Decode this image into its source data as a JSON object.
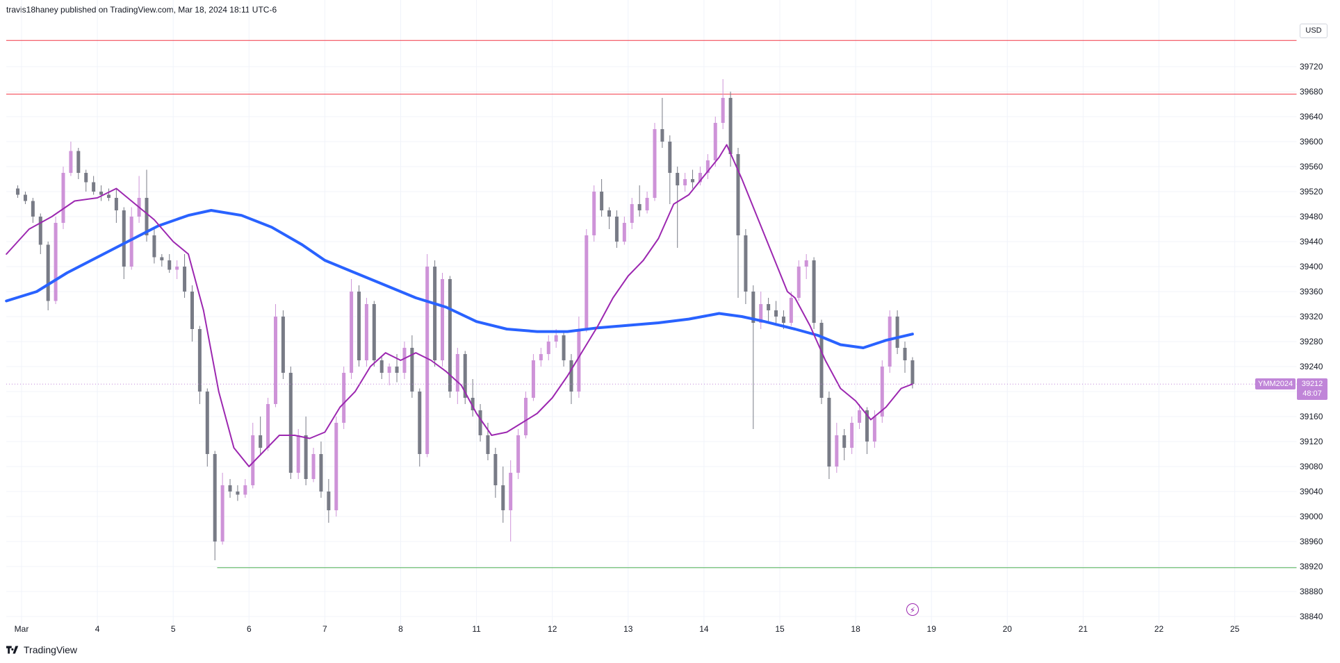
{
  "header": {
    "publish_text": "travis18haney published on TradingView.com, Mar 18, 2024 18:11 UTC-6"
  },
  "footer": {
    "brand": "TradingView",
    "logo_icon": "tradingview-logo-icon"
  },
  "axis": {
    "currency": "USD",
    "symbol": "YMM2024",
    "last_price": "39212",
    "countdown": "48:07"
  },
  "colors": {
    "bull": "#ce93d8",
    "bear": "#787b86",
    "ma_fast": "#9c27b0",
    "ma_slow": "#2962ff",
    "resistance": "#f23645",
    "support": "#4caf50",
    "tag": "#c085d8"
  },
  "icons": {
    "replay": "lightning-bolt-icon"
  },
  "chart_data": {
    "type": "candlestick",
    "title": "",
    "xlabel": "",
    "ylabel": "",
    "ylim": [
      38820,
      39760
    ],
    "y_ticks": [
      38840,
      38880,
      38920,
      38960,
      39000,
      39040,
      39080,
      39120,
      39160,
      39200,
      39240,
      39280,
      39320,
      39360,
      39400,
      39440,
      39480,
      39520,
      39560,
      39600,
      39640,
      39680,
      39720
    ],
    "x_ticks": [
      {
        "label": "Mar",
        "day": 0
      },
      {
        "label": "4",
        "day": 1
      },
      {
        "label": "5",
        "day": 2
      },
      {
        "label": "6",
        "day": 3
      },
      {
        "label": "7",
        "day": 4
      },
      {
        "label": "8",
        "day": 5
      },
      {
        "label": "11",
        "day": 6
      },
      {
        "label": "12",
        "day": 7
      },
      {
        "label": "13",
        "day": 8
      },
      {
        "label": "14",
        "day": 9
      },
      {
        "label": "15",
        "day": 10
      },
      {
        "label": "18",
        "day": 11
      },
      {
        "label": "19",
        "day": 12
      },
      {
        "label": "20",
        "day": 13
      },
      {
        "label": "21",
        "day": 14
      },
      {
        "label": "22",
        "day": 15
      },
      {
        "label": "25",
        "day": 16
      }
    ],
    "horizontal_lines": [
      {
        "value": 39762,
        "color": "#f23645"
      },
      {
        "value": 39676,
        "color": "#f23645"
      },
      {
        "value": 38918,
        "color": "#4caf50",
        "start_day": 2.58
      }
    ],
    "last_price": 39212,
    "ma_fast": [
      [
        -0.2,
        39420
      ],
      [
        0.1,
        39460
      ],
      [
        0.4,
        39480
      ],
      [
        0.7,
        39505
      ],
      [
        1.0,
        39510
      ],
      [
        1.25,
        39525
      ],
      [
        1.5,
        39500
      ],
      [
        1.75,
        39475
      ],
      [
        2.0,
        39440
      ],
      [
        2.2,
        39420
      ],
      [
        2.4,
        39330
      ],
      [
        2.6,
        39200
      ],
      [
        2.8,
        39110
      ],
      [
        3.0,
        39080
      ],
      [
        3.2,
        39105
      ],
      [
        3.4,
        39130
      ],
      [
        3.6,
        39130
      ],
      [
        3.8,
        39125
      ],
      [
        4.0,
        39135
      ],
      [
        4.2,
        39175
      ],
      [
        4.4,
        39200
      ],
      [
        4.6,
        39240
      ],
      [
        4.8,
        39262
      ],
      [
        5.0,
        39250
      ],
      [
        5.2,
        39262
      ],
      [
        5.4,
        39250
      ],
      [
        5.6,
        39232
      ],
      [
        5.8,
        39210
      ],
      [
        6.0,
        39165
      ],
      [
        6.2,
        39130
      ],
      [
        6.4,
        39135
      ],
      [
        6.6,
        39150
      ],
      [
        6.8,
        39165
      ],
      [
        7.0,
        39190
      ],
      [
        7.2,
        39225
      ],
      [
        7.4,
        39265
      ],
      [
        7.6,
        39305
      ],
      [
        7.8,
        39350
      ],
      [
        8.0,
        39385
      ],
      [
        8.2,
        39410
      ],
      [
        8.4,
        39445
      ],
      [
        8.6,
        39500
      ],
      [
        8.8,
        39515
      ],
      [
        9.0,
        39545
      ],
      [
        9.2,
        39575
      ],
      [
        9.3,
        39595
      ],
      [
        9.5,
        39540
      ],
      [
        9.7,
        39480
      ],
      [
        9.9,
        39420
      ],
      [
        10.1,
        39360
      ],
      [
        10.2,
        39350
      ],
      [
        10.4,
        39305
      ],
      [
        10.6,
        39250
      ],
      [
        10.8,
        39205
      ],
      [
        11.0,
        39185
      ],
      [
        11.2,
        39155
      ],
      [
        11.4,
        39175
      ],
      [
        11.6,
        39205
      ],
      [
        11.75,
        39212
      ]
    ],
    "ma_slow": [
      [
        -0.2,
        39345
      ],
      [
        0.2,
        39360
      ],
      [
        0.6,
        39390
      ],
      [
        1.0,
        39415
      ],
      [
        1.4,
        39440
      ],
      [
        1.8,
        39465
      ],
      [
        2.2,
        39482
      ],
      [
        2.5,
        39490
      ],
      [
        2.9,
        39482
      ],
      [
        3.3,
        39463
      ],
      [
        3.7,
        39435
      ],
      [
        4.0,
        39410
      ],
      [
        4.4,
        39390
      ],
      [
        4.8,
        39370
      ],
      [
        5.2,
        39350
      ],
      [
        5.6,
        39335
      ],
      [
        6.0,
        39312
      ],
      [
        6.4,
        39300
      ],
      [
        6.8,
        39296
      ],
      [
        7.2,
        39296
      ],
      [
        7.6,
        39302
      ],
      [
        8.0,
        39306
      ],
      [
        8.4,
        39310
      ],
      [
        8.8,
        39316
      ],
      [
        9.2,
        39325
      ],
      [
        9.5,
        39320
      ],
      [
        9.8,
        39312
      ],
      [
        10.2,
        39300
      ],
      [
        10.5,
        39290
      ],
      [
        10.8,
        39275
      ],
      [
        11.1,
        39270
      ],
      [
        11.4,
        39282
      ],
      [
        11.75,
        39292
      ]
    ],
    "candles": [
      [
        -0.05,
        39525,
        39530,
        39510,
        39515
      ],
      [
        0.05,
        39515,
        39520,
        39500,
        39505
      ],
      [
        0.15,
        39505,
        39510,
        39470,
        39480
      ],
      [
        0.25,
        39480,
        39485,
        39420,
        39435
      ],
      [
        0.35,
        39435,
        39440,
        39330,
        39345
      ],
      [
        0.45,
        39345,
        39480,
        39340,
        39470
      ],
      [
        0.55,
        39470,
        39560,
        39460,
        39550
      ],
      [
        0.65,
        39550,
        39600,
        39545,
        39585
      ],
      [
        0.75,
        39585,
        39590,
        39540,
        39550
      ],
      [
        0.85,
        39550,
        39555,
        39520,
        39535
      ],
      [
        0.95,
        39535,
        39545,
        39515,
        39520
      ],
      [
        1.05,
        39520,
        39530,
        39505,
        39515
      ],
      [
        1.15,
        39515,
        39525,
        39505,
        39510
      ],
      [
        1.25,
        39510,
        39525,
        39470,
        39490
      ],
      [
        1.35,
        39490,
        39495,
        39380,
        39400
      ],
      [
        1.45,
        39400,
        39495,
        39395,
        39480
      ],
      [
        1.55,
        39480,
        39545,
        39470,
        39510
      ],
      [
        1.65,
        39510,
        39555,
        39440,
        39450
      ],
      [
        1.75,
        39450,
        39460,
        39405,
        39415
      ],
      [
        1.85,
        39415,
        39420,
        39400,
        39410
      ],
      [
        1.95,
        39410,
        39420,
        39390,
        39395
      ],
      [
        2.05,
        39395,
        39410,
        39380,
        39400
      ],
      [
        2.15,
        39400,
        39420,
        39350,
        39360
      ],
      [
        2.25,
        39360,
        39370,
        39280,
        39300
      ],
      [
        2.35,
        39300,
        39305,
        39180,
        39200
      ],
      [
        2.45,
        39200,
        39205,
        39080,
        39100
      ],
      [
        2.55,
        39100,
        39105,
        38930,
        38960
      ],
      [
        2.65,
        38960,
        39070,
        38955,
        39050
      ],
      [
        2.75,
        39050,
        39060,
        39030,
        39040
      ],
      [
        2.85,
        39040,
        39050,
        39025,
        39035
      ],
      [
        2.95,
        39035,
        39060,
        39030,
        39050
      ],
      [
        3.05,
        39050,
        39150,
        39045,
        39130
      ],
      [
        3.15,
        39130,
        39160,
        39100,
        39110
      ],
      [
        3.25,
        39110,
        39190,
        39105,
        39180
      ],
      [
        3.35,
        39180,
        39340,
        39175,
        39320
      ],
      [
        3.45,
        39320,
        39330,
        39220,
        39230
      ],
      [
        3.55,
        39230,
        39240,
        39060,
        39070
      ],
      [
        3.65,
        39070,
        39140,
        39060,
        39130
      ],
      [
        3.75,
        39130,
        39160,
        39050,
        39060
      ],
      [
        3.85,
        39060,
        39110,
        39055,
        39100
      ],
      [
        3.95,
        39100,
        39120,
        39030,
        39040
      ],
      [
        4.05,
        39040,
        39060,
        38990,
        39010
      ],
      [
        4.15,
        39010,
        39160,
        39000,
        39150
      ],
      [
        4.25,
        39150,
        39240,
        39140,
        39230
      ],
      [
        4.35,
        39230,
        39380,
        39220,
        39360
      ],
      [
        4.45,
        39360,
        39370,
        39240,
        39250
      ],
      [
        4.55,
        39250,
        39350,
        39240,
        39340
      ],
      [
        4.65,
        39340,
        39345,
        39240,
        39250
      ],
      [
        4.75,
        39250,
        39255,
        39220,
        39230
      ],
      [
        4.85,
        39230,
        39245,
        39210,
        39240
      ],
      [
        4.95,
        39240,
        39260,
        39215,
        39230
      ],
      [
        5.05,
        39230,
        39280,
        39220,
        39270
      ],
      [
        5.15,
        39270,
        39290,
        39190,
        39200
      ],
      [
        5.25,
        39200,
        39205,
        39080,
        39100
      ],
      [
        5.35,
        39100,
        39420,
        39095,
        39400
      ],
      [
        5.45,
        39400,
        39410,
        39240,
        39250
      ],
      [
        5.55,
        39250,
        39390,
        39240,
        39380
      ],
      [
        5.65,
        39380,
        39385,
        39190,
        39200
      ],
      [
        5.75,
        39200,
        39270,
        39180,
        39260
      ],
      [
        5.85,
        39260,
        39265,
        39180,
        39190
      ],
      [
        5.95,
        39190,
        39220,
        39160,
        39170
      ],
      [
        6.05,
        39170,
        39180,
        39120,
        39130
      ],
      [
        6.15,
        39130,
        39150,
        39090,
        39100
      ],
      [
        6.25,
        39100,
        39110,
        39030,
        39050
      ],
      [
        6.35,
        39050,
        39080,
        38990,
        39010
      ],
      [
        6.45,
        39010,
        39090,
        38960,
        39070
      ],
      [
        6.55,
        39070,
        39140,
        39060,
        39130
      ],
      [
        6.65,
        39130,
        39200,
        39125,
        39190
      ],
      [
        6.75,
        39190,
        39260,
        39185,
        39250
      ],
      [
        6.85,
        39250,
        39270,
        39240,
        39260
      ],
      [
        6.95,
        39260,
        39290,
        39250,
        39280
      ],
      [
        7.05,
        39280,
        39300,
        39270,
        39290
      ],
      [
        7.15,
        39290,
        39295,
        39240,
        39250
      ],
      [
        7.25,
        39250,
        39260,
        39180,
        39200
      ],
      [
        7.35,
        39200,
        39320,
        39190,
        39300
      ],
      [
        7.45,
        39300,
        39460,
        39295,
        39450
      ],
      [
        7.55,
        39450,
        39530,
        39440,
        39520
      ],
      [
        7.65,
        39520,
        39540,
        39480,
        39490
      ],
      [
        7.75,
        39490,
        39495,
        39460,
        39480
      ],
      [
        7.85,
        39480,
        39490,
        39430,
        39440
      ],
      [
        7.95,
        39440,
        39480,
        39435,
        39470
      ],
      [
        8.05,
        39470,
        39510,
        39460,
        39500
      ],
      [
        8.15,
        39500,
        39530,
        39480,
        39490
      ],
      [
        8.25,
        39490,
        39520,
        39485,
        39510
      ],
      [
        8.35,
        39510,
        39630,
        39505,
        39620
      ],
      [
        8.45,
        39620,
        39670,
        39590,
        39600
      ],
      [
        8.55,
        39600,
        39610,
        39500,
        39550
      ],
      [
        8.65,
        39550,
        39560,
        39430,
        39530
      ],
      [
        8.75,
        39530,
        39550,
        39520,
        39540
      ],
      [
        8.85,
        39540,
        39555,
        39525,
        39535
      ],
      [
        8.95,
        39535,
        39560,
        39530,
        39550
      ],
      [
        9.05,
        39550,
        39580,
        39540,
        39570
      ],
      [
        9.15,
        39570,
        39640,
        39560,
        39630
      ],
      [
        9.25,
        39630,
        39700,
        39620,
        39670
      ],
      [
        9.35,
        39670,
        39680,
        39560,
        39580
      ],
      [
        9.45,
        39580,
        39590,
        39350,
        39450
      ],
      [
        9.55,
        39450,
        39460,
        39340,
        39360
      ],
      [
        9.65,
        39360,
        39370,
        39140,
        39310
      ],
      [
        9.75,
        39310,
        39360,
        39300,
        39340
      ],
      [
        9.85,
        39340,
        39350,
        39310,
        39330
      ],
      [
        9.95,
        39330,
        39345,
        39305,
        39320
      ],
      [
        10.05,
        39320,
        39330,
        39300,
        39310
      ],
      [
        10.15,
        39310,
        39360,
        39305,
        39350
      ],
      [
        10.25,
        39350,
        39410,
        39345,
        39400
      ],
      [
        10.35,
        39400,
        39420,
        39380,
        39410
      ],
      [
        10.45,
        39410,
        39415,
        39300,
        39310
      ],
      [
        10.55,
        39310,
        39315,
        39180,
        39190
      ],
      [
        10.65,
        39190,
        39200,
        39060,
        39080
      ],
      [
        10.75,
        39080,
        39150,
        39070,
        39130
      ],
      [
        10.85,
        39130,
        39140,
        39090,
        39110
      ],
      [
        10.95,
        39110,
        39160,
        39100,
        39150
      ],
      [
        11.05,
        39150,
        39180,
        39140,
        39170
      ],
      [
        11.15,
        39170,
        39175,
        39100,
        39120
      ],
      [
        11.25,
        39120,
        39170,
        39110,
        39160
      ],
      [
        11.35,
        39160,
        39250,
        39150,
        39240
      ],
      [
        11.45,
        39240,
        39330,
        39230,
        39320
      ],
      [
        11.55,
        39320,
        39330,
        39260,
        39270
      ],
      [
        11.65,
        39270,
        39280,
        39230,
        39250
      ],
      [
        11.75,
        39250,
        39255,
        39205,
        39212
      ]
    ]
  }
}
